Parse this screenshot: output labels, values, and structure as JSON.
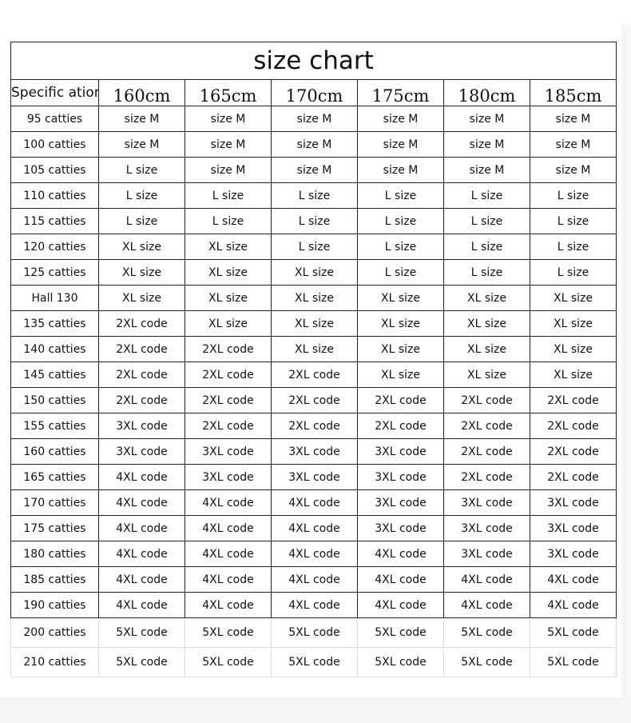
{
  "title": "size chart",
  "spec_header": "Specific ation",
  "heights": [
    "160cm",
    "165cm",
    "170cm",
    "175cm",
    "180cm",
    "185cm"
  ],
  "rows": [
    {
      "weight": "95 catties",
      "sizes": [
        "size M",
        "size M",
        "size M",
        "size M",
        "size M",
        "size M"
      ]
    },
    {
      "weight": "100 catties",
      "sizes": [
        "size M",
        "size M",
        "size M",
        "size M",
        "size M",
        "size M"
      ]
    },
    {
      "weight": "105 catties",
      "sizes": [
        "L size",
        "size M",
        "size M",
        "size M",
        "size M",
        "size M"
      ]
    },
    {
      "weight": "110 catties",
      "sizes": [
        "L size",
        "L size",
        "L size",
        "L size",
        "L size",
        "L size"
      ]
    },
    {
      "weight": "115 catties",
      "sizes": [
        "L size",
        "L size",
        "L size",
        "L size",
        "L size",
        "L size"
      ]
    },
    {
      "weight": "120 catties",
      "sizes": [
        "XL size",
        "XL size",
        "L size",
        "L size",
        "L size",
        "L size"
      ]
    },
    {
      "weight": "125 catties",
      "sizes": [
        "XL size",
        "XL size",
        "XL size",
        "L size",
        "L size",
        "L size"
      ]
    },
    {
      "weight": "Hall 130",
      "sizes": [
        "XL size",
        "XL size",
        "XL size",
        "XL size",
        "XL size",
        "XL size"
      ]
    },
    {
      "weight": "135 catties",
      "sizes": [
        "2XL code",
        "XL size",
        "XL size",
        "XL size",
        "XL size",
        "XL size"
      ]
    },
    {
      "weight": "140 catties",
      "sizes": [
        "2XL code",
        "2XL code",
        "XL size",
        "XL size",
        "XL size",
        "XL size"
      ]
    },
    {
      "weight": "145 catties",
      "sizes": [
        "2XL code",
        "2XL code",
        "2XL code",
        "XL size",
        "XL size",
        "XL size"
      ]
    },
    {
      "weight": "150 catties",
      "sizes": [
        "2XL code",
        "2XL code",
        "2XL code",
        "2XL code",
        "2XL code",
        "2XL code"
      ]
    },
    {
      "weight": "155 catties",
      "sizes": [
        "3XL code",
        "2XL code",
        "2XL code",
        "2XL code",
        "2XL code",
        "2XL code"
      ]
    },
    {
      "weight": "160 catties",
      "sizes": [
        "3XL code",
        "3XL code",
        "3XL code",
        "3XL code",
        "2XL code",
        "2XL code"
      ]
    },
    {
      "weight": "165 catties",
      "sizes": [
        "4XL code",
        "3XL code",
        "3XL code",
        "3XL code",
        "2XL code",
        "2XL code"
      ]
    },
    {
      "weight": "170 catties",
      "sizes": [
        "4XL code",
        "4XL code",
        "4XL code",
        "3XL code",
        "3XL code",
        "3XL code"
      ]
    },
    {
      "weight": "175 catties",
      "sizes": [
        "4XL code",
        "4XL code",
        "4XL code",
        "3XL code",
        "3XL code",
        "3XL code"
      ]
    },
    {
      "weight": "180 catties",
      "sizes": [
        "4XL code",
        "4XL code",
        "4XL code",
        "4XL code",
        "3XL code",
        "3XL code"
      ]
    },
    {
      "weight": "185 catties",
      "sizes": [
        "4XL code",
        "4XL code",
        "4XL code",
        "4XL code",
        "4XL code",
        "4XL code"
      ]
    },
    {
      "weight": "190 catties",
      "sizes": [
        "4XL code",
        "4XL code",
        "4XL code",
        "4XL code",
        "4XL code",
        "4XL code"
      ]
    },
    {
      "weight": "200 catties",
      "sizes": [
        "5XL code",
        "5XL code",
        "5XL code",
        "5XL code",
        "5XL code",
        "5XL code"
      ]
    },
    {
      "weight": "210 catties",
      "sizes": [
        "5XL code",
        "5XL code",
        "5XL code",
        "5XL code",
        "5XL code",
        "5XL code"
      ]
    }
  ]
}
